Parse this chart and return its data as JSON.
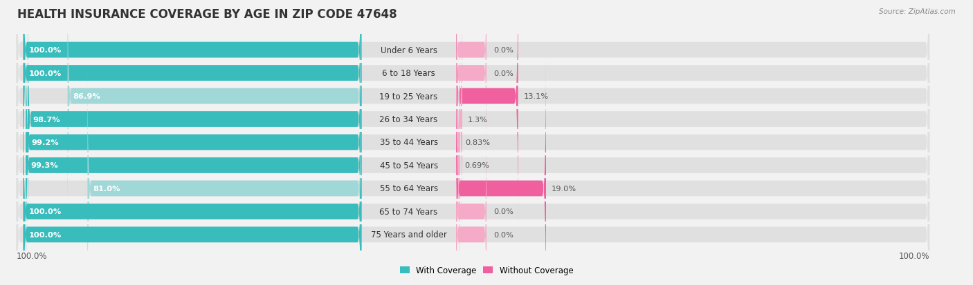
{
  "title": "HEALTH INSURANCE COVERAGE BY AGE IN ZIP CODE 47648",
  "source": "Source: ZipAtlas.com",
  "categories": [
    "Under 6 Years",
    "6 to 18 Years",
    "19 to 25 Years",
    "26 to 34 Years",
    "35 to 44 Years",
    "45 to 54 Years",
    "55 to 64 Years",
    "65 to 74 Years",
    "75 Years and older"
  ],
  "with_coverage": [
    100.0,
    100.0,
    86.9,
    98.7,
    99.2,
    99.3,
    81.0,
    100.0,
    100.0
  ],
  "without_coverage": [
    0.0,
    0.0,
    13.1,
    1.3,
    0.83,
    0.69,
    19.0,
    0.0,
    0.0
  ],
  "with_coverage_color_strong": "#38bcbc",
  "with_coverage_color_light": "#a0d8d8",
  "without_coverage_color_strong": "#f0609e",
  "without_coverage_color_light": "#f5aac8",
  "background_color": "#f2f2f2",
  "bar_bg_color": "#e0e0e0",
  "title_fontsize": 12,
  "bar_height": 0.68,
  "x_left_label": "100.0%",
  "x_right_label": "100.0%",
  "legend_with": "With Coverage",
  "legend_without": "Without Coverage"
}
